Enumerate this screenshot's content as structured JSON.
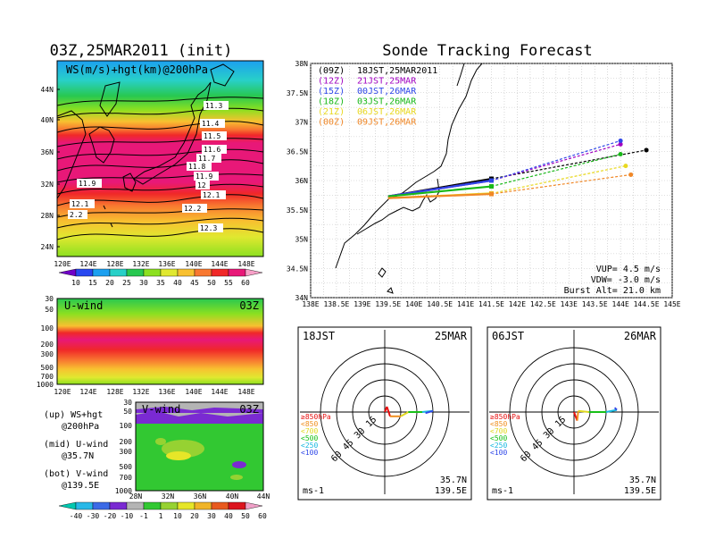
{
  "colors": {
    "ws_scale": [
      "#7000c8",
      "#2848f0",
      "#1ca0f0",
      "#28d0c8",
      "#28c850",
      "#8ce020",
      "#e0e830",
      "#f8c030",
      "#f87830",
      "#f02828",
      "#e81878",
      "#f8a0c8"
    ],
    "v_scale": [
      "#00c8b0",
      "#28b8e8",
      "#3c6ae6",
      "#7a2ad2",
      "#b4b4b4",
      "#32c832",
      "#96d232",
      "#e6e628",
      "#f0b428",
      "#e85a1e",
      "#dc141e",
      "#f0a0c8"
    ],
    "runs": [
      "#000000",
      "#a000c0",
      "#3048e8",
      "#18b818",
      "#e8d820",
      "#f08828"
    ],
    "land": "#000000"
  },
  "left_top": {
    "title": "03Z,25MAR2011 (init)",
    "label": "WS(m/s)+hgt(km)@200hPa",
    "lat_ticks": [
      "44N",
      "40N",
      "36N",
      "32N",
      "28N",
      "24N"
    ],
    "lon_ticks": [
      "120E",
      "124E",
      "128E",
      "132E",
      "136E",
      "140E",
      "144E",
      "148E"
    ],
    "colorbar_ticks": [
      "10",
      "15",
      "20",
      "25",
      "30",
      "35",
      "40",
      "45",
      "50",
      "55",
      "60"
    ],
    "height_labels": [
      "11.3",
      "11.4",
      "11.5",
      "11.6",
      "11.7",
      "11.8",
      "11.9",
      "12",
      "12.1",
      "11.9",
      "12.1",
      "2.2",
      "12.2",
      "12.3"
    ]
  },
  "left_mid": {
    "title": "U-wind",
    "time": "03Z",
    "p_ticks": [
      "30",
      "50",
      "100",
      "200",
      "300",
      "500",
      "700",
      "1000"
    ],
    "lon_ticks": [
      "120E",
      "124E",
      "128E",
      "132E",
      "136E",
      "140E",
      "144E",
      "148E"
    ]
  },
  "left_bot": {
    "title": "V-wind",
    "time": "03Z",
    "p_ticks": [
      "30",
      "50",
      "100",
      "200",
      "300",
      "500",
      "700",
      "1000"
    ],
    "lat_ticks": [
      "28N",
      "32N",
      "36N",
      "40N",
      "44N"
    ],
    "colorbar_ticks": [
      "-40",
      "-30",
      "-20",
      "-10",
      "-1",
      "1",
      "10",
      "20",
      "30",
      "40",
      "50",
      "60"
    ]
  },
  "legend_notes": [
    {
      "line1": "(up) WS+hgt",
      "line2": "@200hPa"
    },
    {
      "line1": "(mid) U-wind",
      "line2": "@35.7N"
    },
    {
      "line1": "(bot) V-wind",
      "line2": "@139.5E"
    }
  ],
  "main": {
    "title": "Sonde Tracking Forecast",
    "lat_ticks": [
      "38N",
      "37.5N",
      "37N",
      "36.5N",
      "36N",
      "35.5N",
      "35N",
      "34.5N",
      "34N"
    ],
    "lon_ticks": [
      "138E",
      "138.5E",
      "139E",
      "139.5E",
      "140E",
      "140.5E",
      "141E",
      "141.5E",
      "142E",
      "142.5E",
      "143E",
      "143.5E",
      "144E",
      "144.5E",
      "145E"
    ],
    "runs": [
      {
        "utc": "(09Z)",
        "jst": "18JST,25MAR2011"
      },
      {
        "utc": "(12Z)",
        "jst": "21JST,25MAR"
      },
      {
        "utc": "(15Z)",
        "jst": "00JST,26MAR"
      },
      {
        "utc": "(18Z)",
        "jst": "03JST,26MAR"
      },
      {
        "utc": "(21Z)",
        "jst": "06JST,26MAR"
      },
      {
        "utc": "(00Z)",
        "jst": "09JST,26MAR"
      }
    ],
    "vup": "VUP= 4.5 m/s",
    "vdw": "VDW= -3.0 m/s",
    "burst": "Burst Alt= 21.0 km"
  },
  "hodo_left": {
    "time": "18JST",
    "date": "25MAR"
  },
  "hodo_right": {
    "time": "06JST",
    "date": "26MAR"
  },
  "hodo_common": {
    "ring_labels": [
      "15",
      "30",
      "45",
      "60"
    ],
    "levels": [
      "≥850hPa",
      "<850",
      "<700",
      "<500",
      "<250",
      "<100"
    ],
    "level_colors": [
      "#e81010",
      "#f09020",
      "#e0d820",
      "#18c018",
      "#18b8e0",
      "#3048e8"
    ],
    "pos_lat": "35.7N",
    "pos_lon": "139.5E",
    "unit": "ms-1"
  },
  "chart_data": [
    {
      "type": "heatmap",
      "title": "03Z,25MAR2011 (init)",
      "subtitle": "WS(m/s)+hgt(km)@200hPa",
      "xlim": [
        120,
        150
      ],
      "ylim": [
        22,
        47
      ],
      "colorbar": [
        10,
        15,
        20,
        25,
        30,
        35,
        40,
        45,
        50,
        55,
        60
      ],
      "jet_core_lat_range": [
        27,
        37
      ],
      "contours_km": [
        11.3,
        11.4,
        11.5,
        11.6,
        11.7,
        11.8,
        11.9,
        12.0,
        12.1,
        12.2,
        12.3
      ]
    },
    {
      "type": "heatmap",
      "title": "U-wind",
      "lat": "35.7N",
      "xlim": [
        120,
        150
      ],
      "p_levels": [
        30,
        50,
        100,
        200,
        300,
        500,
        700,
        1000
      ],
      "max_band_hPa": [
        150,
        300
      ]
    },
    {
      "type": "heatmap",
      "title": "V-wind",
      "lon": "139.5E",
      "xlim": [
        28,
        44
      ],
      "p_levels": [
        30,
        50,
        100,
        200,
        300,
        500,
        700,
        1000
      ],
      "colorbar": [
        -40,
        -30,
        -20,
        -10,
        -1,
        1,
        10,
        20,
        30,
        40,
        50,
        60
      ]
    },
    {
      "type": "line",
      "title": "Sonde Tracking Forecast",
      "xlim": [
        138,
        145
      ],
      "ylim": [
        34,
        38
      ],
      "launch": [
        139.5,
        35.7
      ],
      "series": [
        {
          "name": "(09Z) 18JST,25MAR2011",
          "x": [
            139.5,
            141.5,
            144.5
          ],
          "y": [
            35.73,
            36.03,
            36.52
          ]
        },
        {
          "name": "(12Z) 21JST,25MAR",
          "x": [
            139.5,
            141.5,
            144.0
          ],
          "y": [
            35.73,
            36.0,
            36.62
          ]
        },
        {
          "name": "(15Z) 00JST,26MAR",
          "x": [
            139.5,
            141.5,
            144.0
          ],
          "y": [
            35.73,
            36.0,
            36.68
          ]
        },
        {
          "name": "(18Z) 03JST,26MAR",
          "x": [
            139.5,
            141.5,
            144.0
          ],
          "y": [
            35.73,
            35.9,
            36.45
          ]
        },
        {
          "name": "(21Z) 06JST,26MAR",
          "x": [
            139.5,
            141.5,
            144.1
          ],
          "y": [
            35.7,
            35.78,
            36.25
          ]
        },
        {
          "name": "(00Z) 09JST,26MAR",
          "x": [
            139.5,
            141.5,
            144.2
          ],
          "y": [
            35.7,
            35.77,
            36.1
          ]
        }
      ]
    },
    {
      "type": "line",
      "title": "18JST 25MAR",
      "rings": [
        15,
        30,
        45,
        60
      ],
      "u": [
        0,
        2,
        5,
        15,
        22,
        35,
        45,
        38
      ],
      "v": [
        0,
        5,
        -4,
        -4,
        0,
        0,
        1,
        -1
      ]
    },
    {
      "type": "line",
      "title": "06JST 26MAR",
      "rings": [
        15,
        30,
        45,
        60
      ],
      "u": [
        0,
        3,
        4,
        14,
        30,
        40,
        38
      ],
      "v": [
        0,
        -8,
        1,
        0,
        0,
        2,
        4
      ]
    }
  ]
}
